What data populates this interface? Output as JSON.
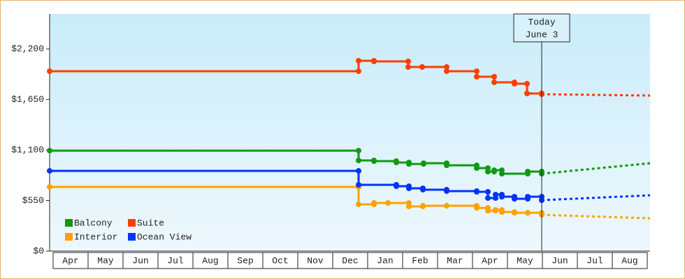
{
  "chart_data": {
    "type": "step-line",
    "xlim": [
      -0.1,
      17.08
    ],
    "xticks": [
      {
        "value": 0.5,
        "label": "Apr"
      },
      {
        "value": 1.5,
        "label": "May"
      },
      {
        "value": 2.5,
        "label": "Jun"
      },
      {
        "value": 3.5,
        "label": "Jul"
      },
      {
        "value": 4.5,
        "label": "Aug"
      },
      {
        "value": 5.5,
        "label": "Sep"
      },
      {
        "value": 6.5,
        "label": "Oct"
      },
      {
        "value": 7.5,
        "label": "Nov"
      },
      {
        "value": 8.5,
        "label": "Dec"
      },
      {
        "value": 9.5,
        "label": "Jan"
      },
      {
        "value": 10.5,
        "label": "Feb"
      },
      {
        "value": 11.5,
        "label": "Mar"
      },
      {
        "value": 12.5,
        "label": "Apr"
      },
      {
        "value": 13.5,
        "label": "May"
      },
      {
        "value": 14.5,
        "label": "Jun"
      },
      {
        "value": 15.5,
        "label": "Jul"
      },
      {
        "value": 16.5,
        "label": "Aug"
      }
    ],
    "ylim": [
      0,
      2580
    ],
    "yticks": [
      {
        "value": 0,
        "label": "$0"
      },
      {
        "value": 550,
        "label": "$550"
      },
      {
        "value": 1100,
        "label": "$1,100"
      },
      {
        "value": 1650,
        "label": "$1,650"
      },
      {
        "value": 2200,
        "label": "$2,200"
      }
    ],
    "annotations": [
      {
        "x": 13.98,
        "text": [
          "Today",
          "June 3"
        ]
      }
    ],
    "series": [
      {
        "name": "Balcony",
        "color": "#119911",
        "x": [
          -0.1,
          8.74,
          9.18,
          9.82,
          10.18,
          10.6,
          11.26,
          12.12,
          12.44,
          12.62,
          12.84,
          13.58,
          13.98,
          17.08
        ],
        "values": [
          1093,
          986,
          979,
          964,
          948,
          956,
          933,
          903,
          865,
          880,
          842,
          865,
          842,
          956
        ]
      },
      {
        "name": "Suite",
        "color": "#ff3d00",
        "x": [
          -0.1,
          8.74,
          9.18,
          10.16,
          10.56,
          11.26,
          12.12,
          12.62,
          13.2,
          13.56,
          13.98,
          17.08
        ],
        "values": [
          1957,
          2071,
          2064,
          2003,
          2003,
          1957,
          1897,
          1836,
          1821,
          1715,
          1707,
          1692
        ]
      },
      {
        "name": "Interior",
        "color": "#ffa200",
        "x": [
          -0.1,
          8.74,
          9.18,
          9.58,
          10.18,
          10.58,
          11.26,
          12.12,
          12.44,
          12.66,
          12.84,
          13.2,
          13.58,
          13.98,
          17.08
        ],
        "values": [
          698,
          508,
          524,
          524,
          486,
          493,
          493,
          470,
          440,
          448,
          425,
          417,
          417,
          395,
          357
        ]
      },
      {
        "name": "Ocean View",
        "color": "#0033ff",
        "x": [
          -0.1,
          8.74,
          9.82,
          10.18,
          10.58,
          11.26,
          12.12,
          12.44,
          12.66,
          12.84,
          13.2,
          13.58,
          13.98,
          17.08
        ],
        "values": [
          873,
          721,
          706,
          683,
          668,
          653,
          645,
          577,
          615,
          592,
          569,
          592,
          554,
          607
        ]
      }
    ]
  }
}
